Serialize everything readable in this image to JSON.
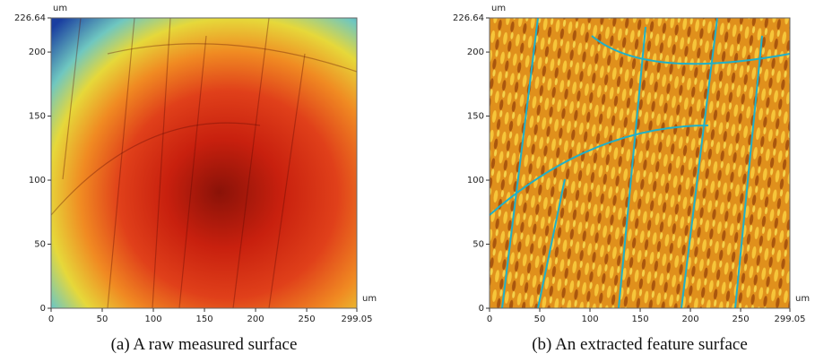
{
  "panels": [
    {
      "x_unit": "um",
      "y_unit": "um",
      "xticks": [
        0,
        50,
        100,
        150,
        200,
        250,
        299.05
      ],
      "yticks": [
        0,
        50,
        100,
        150,
        200,
        226.64
      ],
      "caption": "(a) A raw measured surface"
    },
    {
      "x_unit": "um",
      "y_unit": "um",
      "xticks": [
        0,
        50,
        100,
        150,
        200,
        250,
        299.05
      ],
      "yticks": [
        0,
        50,
        100,
        150,
        200,
        226.64
      ],
      "caption": "(b) An extracted feature surface"
    }
  ]
}
